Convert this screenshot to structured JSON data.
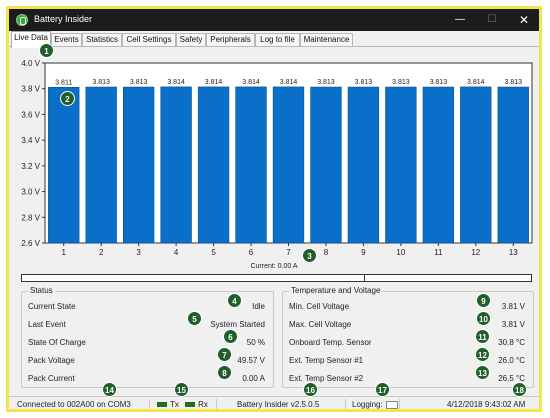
{
  "window": {
    "title": "Battery Insider",
    "min_glyph": "—",
    "max_glyph": "☐",
    "close_glyph": "✕"
  },
  "tabs": [
    {
      "label": "Live Data",
      "active": true
    },
    {
      "label": "Events"
    },
    {
      "label": "Statistics"
    },
    {
      "label": "Cell Settings"
    },
    {
      "label": "Safety"
    },
    {
      "label": "Peripherals"
    },
    {
      "label": "Log to file"
    },
    {
      "label": "Maintenance"
    }
  ],
  "chart_data": {
    "type": "bar",
    "categories": [
      "1",
      "2",
      "3",
      "4",
      "5",
      "6",
      "7",
      "8",
      "9",
      "10",
      "11",
      "12",
      "13"
    ],
    "values": [
      3.811,
      3.813,
      3.813,
      3.814,
      3.814,
      3.814,
      3.814,
      3.813,
      3.813,
      3.813,
      3.813,
      3.814,
      3.813
    ],
    "value_labels": [
      "3.811",
      "3.813",
      "3.813",
      "3.814",
      "3.814",
      "3.814",
      "3.814",
      "3.813",
      "3.813",
      "3.813",
      "3.813",
      "3.814",
      "3.813"
    ],
    "ylim": [
      2.6,
      4.0
    ],
    "yticks": [
      2.6,
      2.8,
      3.0,
      3.2,
      3.4,
      3.6,
      3.8,
      4.0
    ],
    "ytick_labels": [
      "2.6 V",
      "2.8 V",
      "3.0 V",
      "3.2 V",
      "3.4 V",
      "3.6 V",
      "3.8 V",
      "4.0 V"
    ],
    "bar_color": "#0a6fc9"
  },
  "current": {
    "label": "Current: 0.00 A",
    "fraction": 0.0
  },
  "status": {
    "title": "Status",
    "rows": [
      {
        "label": "Current State",
        "value": "Idle"
      },
      {
        "label": "Last Event",
        "value": "System Started"
      },
      {
        "label": "State Of Charge",
        "value": "50 %"
      },
      {
        "label": "Pack Voltage",
        "value": "49.57 V"
      },
      {
        "label": "Pack Current",
        "value": "0.00 A"
      }
    ]
  },
  "temperature": {
    "title": "Temperature and Voltage",
    "rows": [
      {
        "label": "Min. Cell Voltage",
        "value": "3.81 V"
      },
      {
        "label": "Max. Cell Voltage",
        "value": "3.81 V"
      },
      {
        "label": "Onboard Temp. Sensor",
        "value": "30.8 °C"
      },
      {
        "label": "Ext. Temp Sensor #1",
        "value": "26.0 °C"
      },
      {
        "label": "Ext. Temp Sensor #2",
        "value": "26.5 °C"
      }
    ]
  },
  "statusbar": {
    "connection": "Connected to 002A00 on COM3",
    "tx": "Tx",
    "rx": "Rx",
    "version": "Battery Insider v2.5.0.5",
    "logging": "Logging:",
    "datetime": "4/12/2018 9:43:02 AM"
  },
  "badges": [
    "1",
    "2",
    "3",
    "4",
    "5",
    "6",
    "7",
    "8",
    "9",
    "10",
    "11",
    "12",
    "13",
    "14",
    "15",
    "16",
    "17",
    "18"
  ],
  "colors": {
    "badge": "#1e5f2a",
    "bar": "#0a6fc9",
    "highlight_border": "#f2e64a"
  }
}
